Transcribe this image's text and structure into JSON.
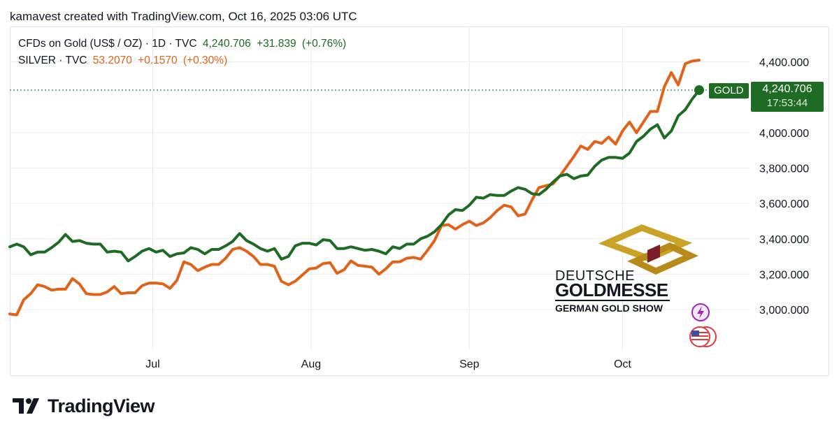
{
  "header": {
    "attribution": "kamavest created with TradingView.com, Oct 16, 2025 03:06 UTC"
  },
  "legend": {
    "gold": {
      "symbol": "CFDs on Gold (US$ / OZ) · 1D · TVC",
      "price": "4,240.706",
      "change": "+31.839",
      "change_pct": "(+0.76%)"
    },
    "silver": {
      "symbol": "SILVER · TVC",
      "price": "53.2070",
      "change": "+0.1570",
      "change_pct": "(+0.30%)"
    }
  },
  "price_label": {
    "name": "GOLD",
    "price": "4,240.706",
    "countdown": "17:53:44"
  },
  "watermark": {
    "line1": "DEUTSCHE",
    "line2": "GOLDMESSE",
    "line3": "GERMAN GOLD SHOW"
  },
  "branding": {
    "name": "TradingView"
  },
  "icons": [
    "flash-icon",
    "us-flag-icon"
  ],
  "colors": {
    "gold": "#1e6b24",
    "silver": "#e3621a",
    "grid": "#e9ecf1"
  },
  "chart_data": {
    "type": "line",
    "x_tick_labels": [
      "Jul",
      "Aug",
      "Sep",
      "Oct"
    ],
    "y_tick_labels": [
      "4,400.000",
      "4,000.000",
      "3,800.000",
      "3,600.000",
      "3,400.000",
      "3,200.000",
      "3,000.000"
    ],
    "y_ticks": [
      4400,
      4000,
      3800,
      3600,
      3400,
      3200,
      3000
    ],
    "ylim": [
      2775,
      4600
    ],
    "date_start": "2025-06-03",
    "date_end": "2025-10-16",
    "x_tick_dates": [
      "2025-07-01",
      "2025-08-01",
      "2025-09-01",
      "2025-10-01"
    ],
    "series": [
      {
        "name": "GOLD",
        "values": [
          3355,
          3370,
          3355,
          3310,
          3325,
          3325,
          3350,
          3380,
          3425,
          3385,
          3390,
          3375,
          3370,
          3370,
          3325,
          3330,
          3325,
          3275,
          3300,
          3330,
          3345,
          3325,
          3335,
          3300,
          3315,
          3320,
          3350,
          3340,
          3315,
          3340,
          3340,
          3360,
          3385,
          3430,
          3390,
          3370,
          3345,
          3330,
          3345,
          3285,
          3300,
          3360,
          3375,
          3375,
          3365,
          3395,
          3390,
          3345,
          3345,
          3355,
          3345,
          3335,
          3340,
          3330,
          3315,
          3355,
          3345,
          3370,
          3370,
          3400,
          3415,
          3440,
          3480,
          3535,
          3565,
          3560,
          3590,
          3635,
          3630,
          3650,
          3645,
          3645,
          3670,
          3690,
          3680,
          3655,
          3650,
          3680,
          3720,
          3755,
          3765,
          3740,
          3755,
          3760,
          3810,
          3845,
          3860,
          3860,
          3855,
          3885,
          3950,
          3980,
          4020,
          4045,
          3970,
          4010,
          4095,
          4130,
          4190,
          4240.706
        ]
      },
      {
        "name": "SILVER",
        "values": [
          2975,
          2970,
          3055,
          3090,
          3140,
          3130,
          3110,
          3115,
          3115,
          3175,
          3145,
          3090,
          3085,
          3085,
          3100,
          3130,
          3090,
          3095,
          3095,
          3135,
          3150,
          3150,
          3145,
          3120,
          3165,
          3270,
          3255,
          3220,
          3240,
          3255,
          3255,
          3290,
          3340,
          3350,
          3330,
          3300,
          3255,
          3255,
          3245,
          3160,
          3140,
          3160,
          3195,
          3230,
          3235,
          3260,
          3265,
          3205,
          3225,
          3275,
          3250,
          3245,
          3240,
          3200,
          3230,
          3270,
          3270,
          3290,
          3295,
          3285,
          3335,
          3390,
          3475,
          3480,
          3455,
          3480,
          3500,
          3475,
          3490,
          3520,
          3560,
          3590,
          3580,
          3530,
          3540,
          3620,
          3690,
          3700,
          3710,
          3755,
          3810,
          3865,
          3925,
          3905,
          3950,
          3940,
          3975,
          3935,
          4010,
          4060,
          4000,
          4060,
          4120,
          4120,
          4260,
          4340,
          4270,
          4390,
          4405,
          4410
        ]
      }
    ],
    "last_price_line": 4240.706,
    "grid": true,
    "legend_position": "top-left",
    "y_axis_position": "right"
  }
}
